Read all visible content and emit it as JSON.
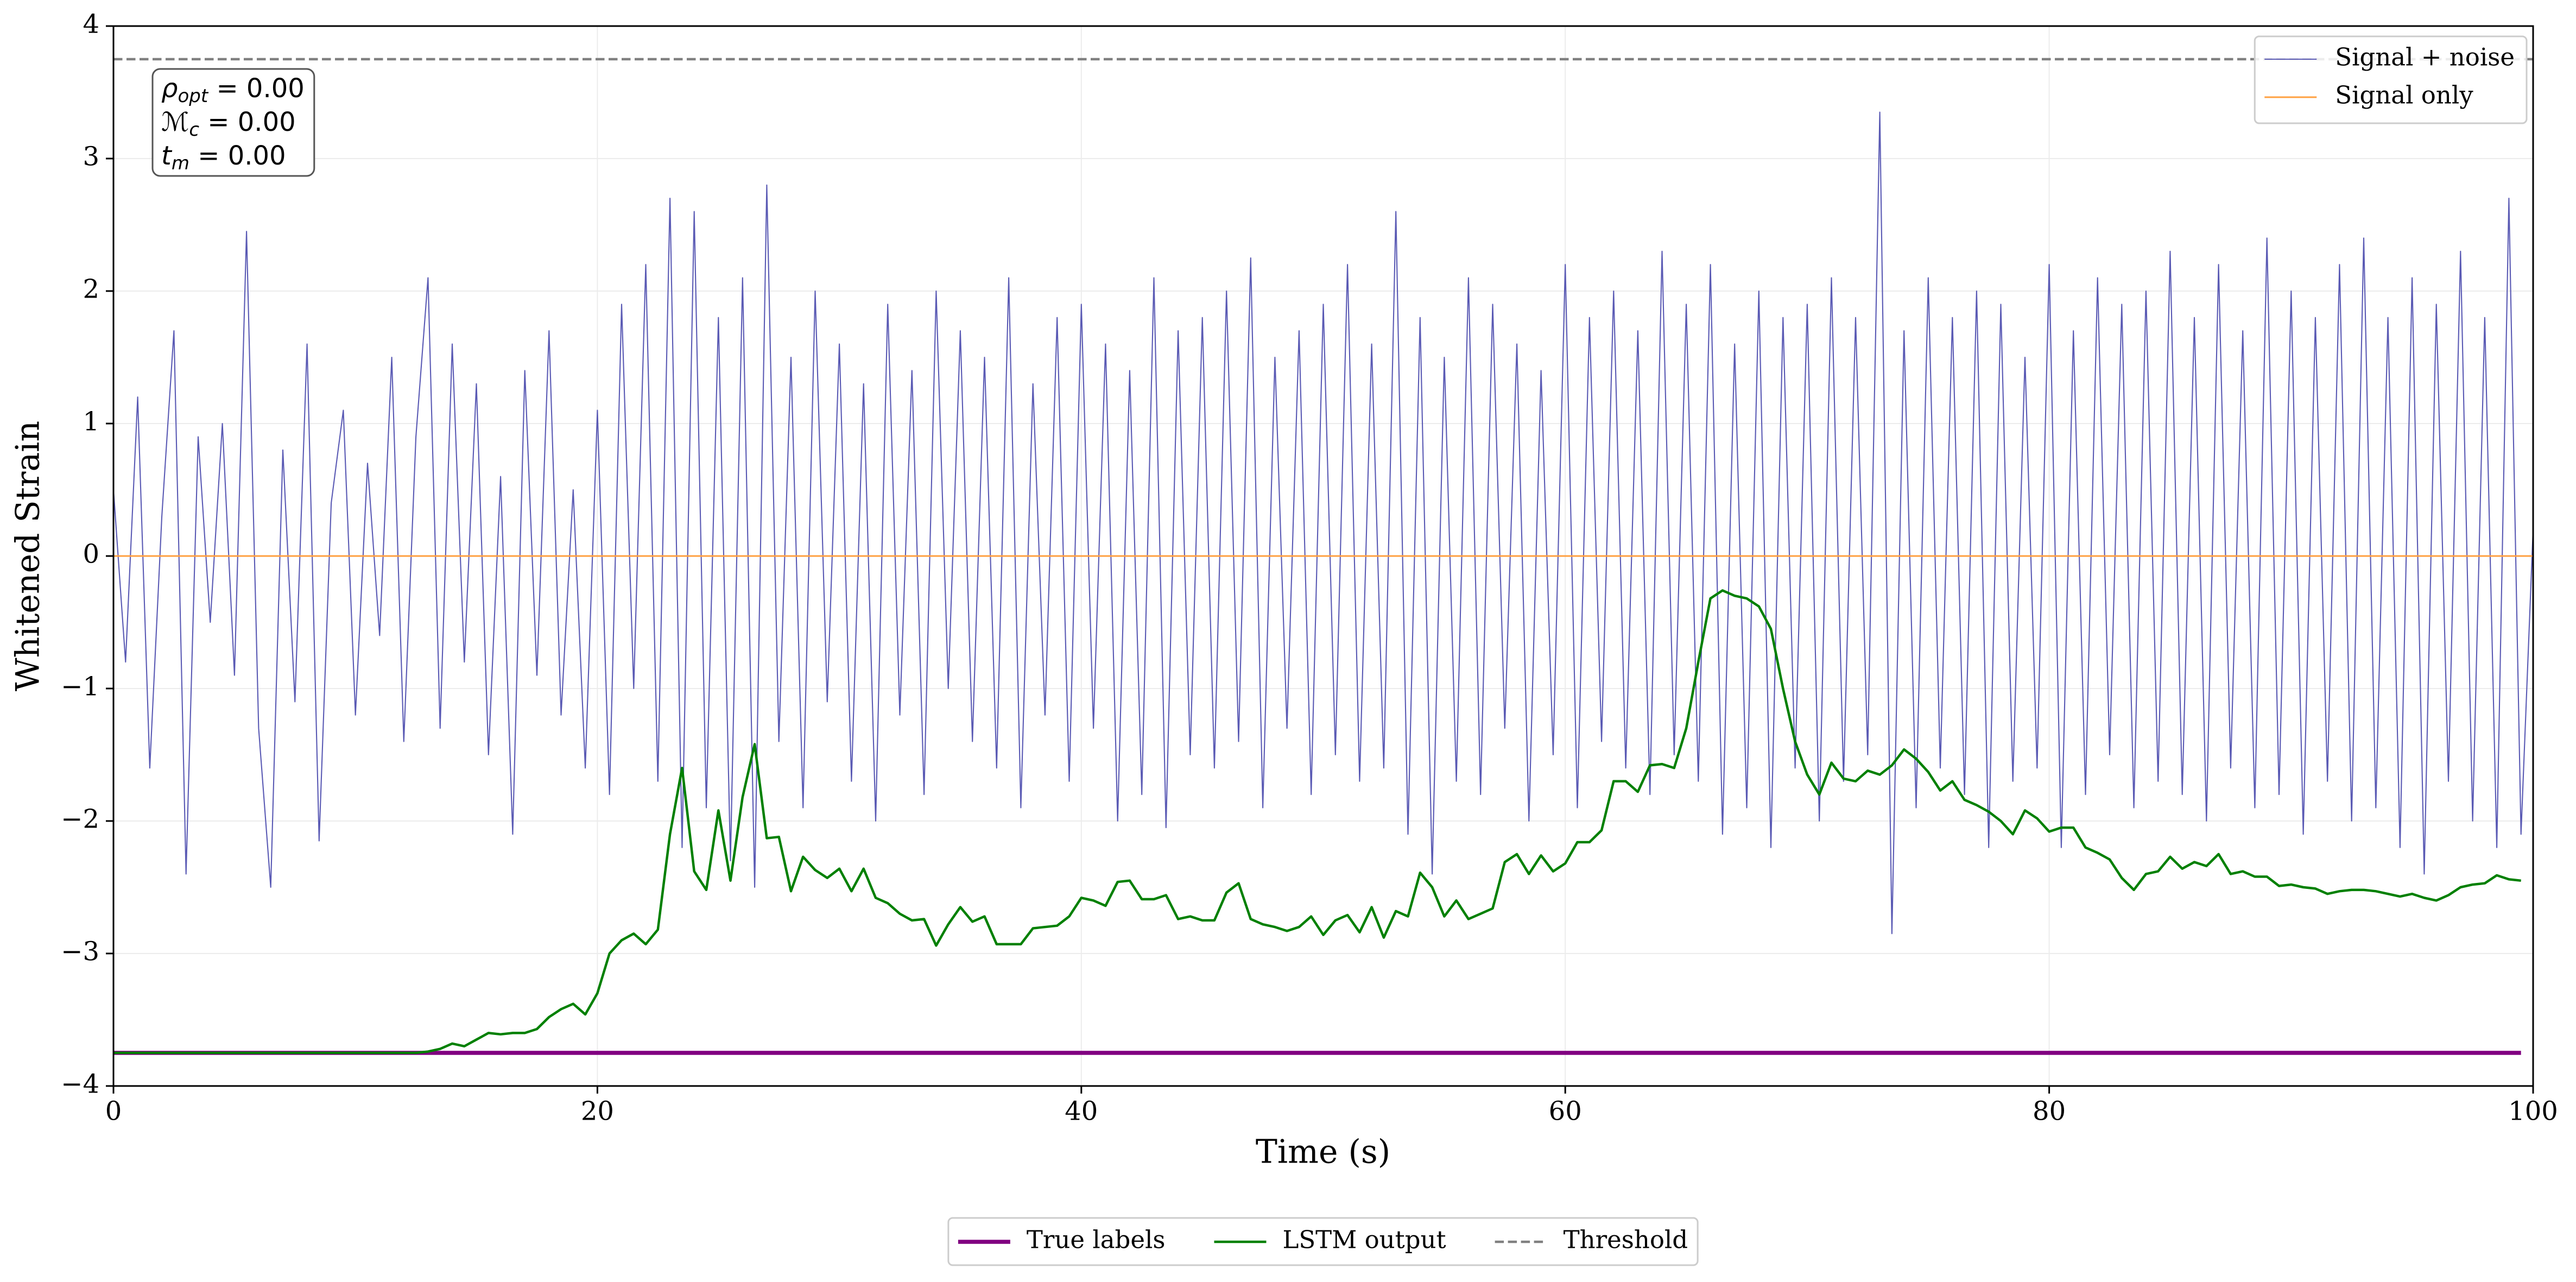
{
  "chart_data": {
    "type": "line",
    "xlabel": "Time (s)",
    "ylabel": "Whitened Strain",
    "xlim": [
      0,
      100
    ],
    "ylim": [
      -4,
      4
    ],
    "xticks": [
      0,
      20,
      40,
      60,
      80,
      100
    ],
    "yticks": [
      {
        "value": -4,
        "label": "−4"
      },
      {
        "value": -3,
        "label": "−3"
      },
      {
        "value": -2,
        "label": "−2"
      },
      {
        "value": -1,
        "label": "−1"
      },
      0,
      1,
      2,
      3,
      4
    ],
    "grid": true,
    "x": [
      0,
      0.5,
      1,
      1.5,
      2,
      2.5,
      3,
      3.5,
      4,
      4.5,
      5,
      5.5,
      6,
      6.5,
      7,
      7.5,
      8,
      8.5,
      9,
      9.5,
      10,
      10.5,
      11,
      11.5,
      12,
      12.5,
      13,
      13.5,
      14,
      14.5,
      15,
      15.5,
      16,
      16.5,
      17,
      17.5,
      18,
      18.5,
      19,
      19.5,
      20,
      20.5,
      21,
      21.5,
      22,
      22.5,
      23,
      23.5,
      24,
      24.5,
      25,
      25.5,
      26,
      26.5,
      27,
      27.5,
      28,
      28.5,
      29,
      29.5,
      30,
      30.5,
      31,
      31.5,
      32,
      32.5,
      33,
      33.5,
      34,
      34.5,
      35,
      35.5,
      36,
      36.5,
      37,
      37.5,
      38,
      38.5,
      39,
      39.5,
      40,
      40.5,
      41,
      41.5,
      42,
      42.5,
      43,
      43.5,
      44,
      44.5,
      45,
      45.5,
      46,
      46.5,
      47,
      47.5,
      48,
      48.5,
      49,
      49.5,
      50,
      50.5,
      51,
      51.5,
      52,
      52.5,
      53,
      53.5,
      54,
      54.5,
      55,
      55.5,
      56,
      56.5,
      57,
      57.5,
      58,
      58.5,
      59,
      59.5,
      60,
      60.5,
      61,
      61.5,
      62,
      62.5,
      63,
      63.5,
      64,
      64.5,
      65,
      65.5,
      66,
      66.5,
      67,
      67.5,
      68,
      68.5,
      69,
      69.5,
      70,
      70.5,
      71,
      71.5,
      72,
      72.5,
      73,
      73.5,
      74,
      74.5,
      75,
      75.5,
      76,
      76.5,
      77,
      77.5,
      78,
      78.5,
      79,
      79.5,
      80,
      80.5,
      81,
      81.5,
      82,
      82.5,
      83,
      83.5,
      84,
      84.5,
      85,
      85.5,
      86,
      86.5,
      87,
      87.5,
      88,
      88.5,
      89,
      89.5,
      90,
      90.5,
      91,
      91.5,
      92,
      92.5,
      93,
      93.5,
      94,
      94.5,
      95,
      95.5,
      96,
      96.5,
      97,
      97.5,
      98,
      98.5,
      99,
      99.5,
      100
    ],
    "series": [
      {
        "name": "Signal + noise",
        "color": "#5a5ab4",
        "linewidth": 0.7,
        "legend": "upper right",
        "values": [
          0.5,
          -0.8,
          1.2,
          -1.6,
          0.3,
          1.7,
          -2.4,
          0.9,
          -0.5,
          1.0,
          -0.9,
          2.45,
          -1.3,
          -2.5,
          0.8,
          -1.1,
          1.6,
          -2.15,
          0.4,
          1.1,
          -1.2,
          0.7,
          -0.6,
          1.5,
          -1.4,
          0.9,
          2.1,
          -1.3,
          1.6,
          -0.8,
          1.3,
          -1.5,
          0.6,
          -2.1,
          1.4,
          -0.9,
          1.7,
          -1.2,
          0.5,
          -1.6,
          1.1,
          -1.8,
          1.9,
          -1.0,
          2.2,
          -1.7,
          2.7,
          -2.2,
          2.6,
          -1.9,
          1.8,
          -2.3,
          2.1,
          -2.5,
          2.8,
          -1.4,
          1.5,
          -1.9,
          2.0,
          -1.1,
          1.6,
          -1.7,
          1.3,
          -2.0,
          1.9,
          -1.2,
          1.4,
          -1.8,
          2.0,
          -1.0,
          1.7,
          -1.4,
          1.5,
          -1.6,
          2.1,
          -1.9,
          1.3,
          -1.2,
          1.8,
          -1.7,
          1.9,
          -1.3,
          1.6,
          -2.0,
          1.4,
          -1.8,
          2.1,
          -2.05,
          1.7,
          -1.5,
          1.8,
          -1.6,
          2.0,
          -1.4,
          2.25,
          -1.9,
          1.5,
          -1.3,
          1.7,
          -1.8,
          1.9,
          -1.5,
          2.2,
          -1.7,
          1.6,
          -1.6,
          2.6,
          -2.1,
          1.8,
          -2.4,
          1.5,
          -1.7,
          2.1,
          -1.8,
          1.9,
          -1.3,
          1.6,
          -2.0,
          1.4,
          -1.5,
          2.2,
          -1.9,
          1.8,
          -1.4,
          2.0,
          -1.6,
          1.7,
          -1.8,
          2.3,
          -1.5,
          1.9,
          -1.7,
          2.2,
          -2.1,
          1.6,
          -1.9,
          2.0,
          -2.2,
          1.8,
          -1.6,
          1.9,
          -2.0,
          2.1,
          -1.7,
          1.8,
          -1.5,
          3.35,
          -2.85,
          1.7,
          -1.9,
          2.1,
          -1.6,
          1.8,
          -1.8,
          2.0,
          -2.2,
          1.9,
          -1.7,
          1.5,
          -1.6,
          2.2,
          -2.2,
          1.7,
          -1.8,
          2.1,
          -1.5,
          1.9,
          -1.9,
          2.0,
          -1.7,
          2.3,
          -1.8,
          1.8,
          -2.0,
          2.2,
          -1.6,
          1.7,
          -1.9,
          2.4,
          -1.8,
          2.0,
          -2.1,
          1.8,
          -1.7,
          2.2,
          -2.0,
          2.4,
          -1.9,
          1.8,
          -2.2,
          2.1,
          -2.4,
          1.9,
          -1.7,
          2.3,
          -2.0,
          1.8,
          -2.2,
          2.7,
          -2.1,
          0.2
        ]
      },
      {
        "name": "Signal only",
        "color": "#ffa040",
        "linewidth": 1,
        "legend": "upper right",
        "x": [
          0,
          100
        ],
        "values": [
          0,
          0
        ]
      },
      {
        "name": "True labels",
        "color": "#800080",
        "linewidth": 2.5,
        "legend": "lower center",
        "x": [
          0,
          99.5
        ],
        "values": [
          -3.75,
          -3.75
        ]
      },
      {
        "name": "LSTM output",
        "color": "#008000",
        "linewidth": 1.5,
        "legend": "lower center",
        "values": [
          -3.75,
          -3.75,
          -3.75,
          -3.75,
          -3.75,
          -3.75,
          -3.75,
          -3.75,
          -3.75,
          -3.75,
          -3.75,
          -3.75,
          -3.75,
          -3.75,
          -3.75,
          -3.75,
          -3.75,
          -3.75,
          -3.75,
          -3.75,
          -3.75,
          -3.75,
          -3.75,
          -3.75,
          -3.75,
          -3.75,
          -3.74,
          -3.72,
          -3.68,
          -3.7,
          -3.65,
          -3.6,
          -3.61,
          -3.6,
          -3.6,
          -3.57,
          -3.48,
          -3.42,
          -3.38,
          -3.46,
          -3.3,
          -3.0,
          -2.9,
          -2.85,
          -2.93,
          -2.82,
          -2.1,
          -1.6,
          -2.38,
          -2.52,
          -1.92,
          -2.45,
          -1.82,
          -1.42,
          -2.13,
          -2.12,
          -2.53,
          -2.27,
          -2.37,
          -2.43,
          -2.36,
          -2.53,
          -2.36,
          -2.58,
          -2.62,
          -2.7,
          -2.75,
          -2.74,
          -2.94,
          -2.78,
          -2.65,
          -2.76,
          -2.72,
          -2.93,
          -2.93,
          -2.93,
          -2.81,
          -2.8,
          -2.79,
          -2.72,
          -2.58,
          -2.6,
          -2.64,
          -2.46,
          -2.45,
          -2.59,
          -2.59,
          -2.56,
          -2.74,
          -2.72,
          -2.75,
          -2.75,
          -2.54,
          -2.47,
          -2.74,
          -2.78,
          -2.8,
          -2.83,
          -2.8,
          -2.72,
          -2.86,
          -2.75,
          -2.71,
          -2.84,
          -2.65,
          -2.88,
          -2.68,
          -2.72,
          -2.39,
          -2.5,
          -2.72,
          -2.6,
          -2.74,
          -2.7,
          -2.66,
          -2.31,
          -2.25,
          -2.4,
          -2.26,
          -2.38,
          -2.32,
          -2.16,
          -2.16,
          -2.07,
          -1.7,
          -1.7,
          -1.78,
          -1.58,
          -1.57,
          -1.6,
          -1.3,
          -0.8,
          -0.32,
          -0.26,
          -0.3,
          -0.32,
          -0.38,
          -0.55,
          -1.0,
          -1.4,
          -1.65,
          -1.8,
          -1.56,
          -1.68,
          -1.7,
          -1.62,
          -1.65,
          -1.58,
          -1.46,
          -1.53,
          -1.63,
          -1.77,
          -1.7,
          -1.84,
          -1.88,
          -1.93,
          -2.0,
          -2.1,
          -1.92,
          -1.98,
          -2.08,
          -2.05,
          -2.05,
          -2.2,
          -2.24,
          -2.29,
          -2.43,
          -2.52,
          -2.4,
          -2.38,
          -2.27,
          -2.36,
          -2.31,
          -2.34,
          -2.25,
          -2.4,
          -2.38,
          -2.42,
          -2.42,
          -2.49,
          -2.48,
          -2.5,
          -2.51,
          -2.55,
          -2.53,
          -2.52,
          -2.52,
          -2.53,
          -2.55,
          -2.57,
          -2.55,
          -2.58,
          -2.6,
          -2.56,
          -2.5,
          -2.48,
          -2.47,
          -2.41,
          -2.44,
          -2.45,
          null
        ]
      },
      {
        "name": "Threshold",
        "color": "#808080",
        "linewidth": 1.5,
        "style": "dashed",
        "legend": "lower center",
        "x": [
          0,
          100
        ],
        "values": [
          3.75,
          3.75
        ]
      }
    ],
    "annotations": [
      {
        "main": "ρ",
        "sub": "opt",
        "rest": " = 0.00"
      },
      {
        "main": "ℳ",
        "sub": "c",
        "rest": " = 0.00"
      },
      {
        "main": "t",
        "sub": "m",
        "rest": " = 0.00"
      }
    ]
  }
}
